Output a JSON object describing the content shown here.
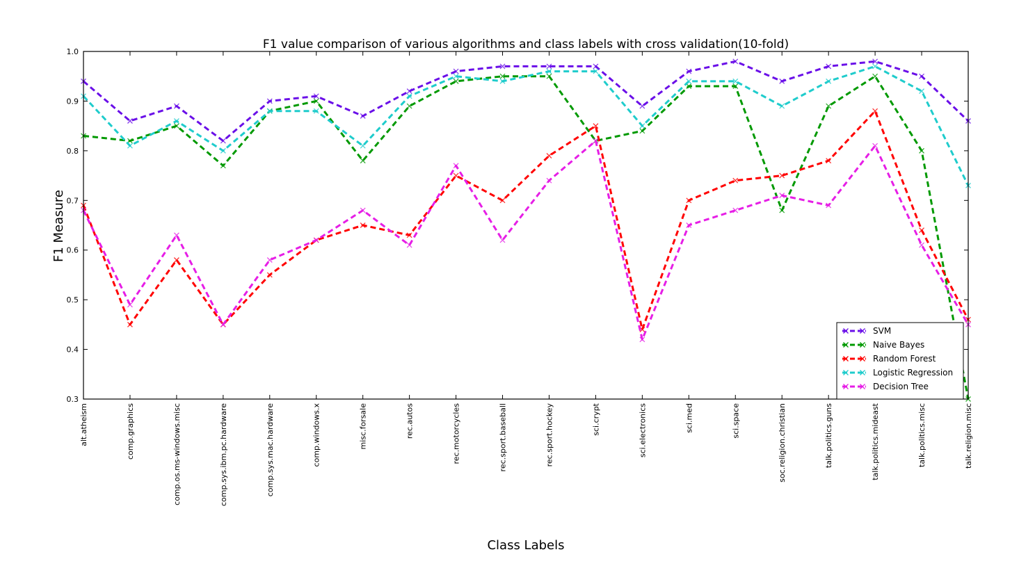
{
  "chart_data": {
    "type": "line",
    "title": "F1 value comparison of various algorithms and class labels with cross validation(10-fold)",
    "xlabel": "Class Labels",
    "ylabel": "F1 Measure",
    "ylim": [
      0.3,
      1.0
    ],
    "yticks": [
      "0.3",
      "0.4",
      "0.5",
      "0.6",
      "0.7",
      "0.8",
      "0.9",
      "1.0"
    ],
    "grid": false,
    "legend_position": "lower-right",
    "categories": [
      "alt.atheism",
      "comp.graphics",
      "comp.os.ms-windows.misc",
      "comp.sys.ibm.pc.hardware",
      "comp.sys.mac.hardware",
      "comp.windows.x",
      "misc.forsale",
      "rec.autos",
      "rec.motorcycles",
      "rec.sport.baseball",
      "rec.sport.hockey",
      "sci.crypt",
      "sci.electronics",
      "sci.med",
      "sci.space",
      "soc.religion.christian",
      "talk.politics.guns",
      "talk.politics.mideast",
      "talk.politics.misc",
      "talk.religion.misc"
    ],
    "series": [
      {
        "name": "SVM",
        "color": "#6a0fe8",
        "values": [
          0.94,
          0.86,
          0.89,
          0.82,
          0.9,
          0.91,
          0.87,
          0.92,
          0.96,
          0.97,
          0.97,
          0.97,
          0.89,
          0.96,
          0.98,
          0.94,
          0.97,
          0.98,
          0.95,
          0.86
        ]
      },
      {
        "name": "Naive Bayes",
        "color": "#009900",
        "values": [
          0.83,
          0.82,
          0.85,
          0.77,
          0.88,
          0.9,
          0.78,
          0.89,
          0.94,
          0.95,
          0.95,
          0.82,
          0.84,
          0.93,
          0.93,
          0.68,
          0.89,
          0.95,
          0.8,
          0.3
        ]
      },
      {
        "name": "Random Forest",
        "color": "#ff0000",
        "values": [
          0.69,
          0.45,
          0.58,
          0.45,
          0.55,
          0.62,
          0.65,
          0.63,
          0.75,
          0.7,
          0.79,
          0.85,
          0.44,
          0.7,
          0.74,
          0.75,
          0.78,
          0.88,
          0.64,
          0.46
        ]
      },
      {
        "name": "Logistic Regression",
        "color": "#1fcccc",
        "values": [
          0.91,
          0.81,
          0.86,
          0.8,
          0.88,
          0.88,
          0.81,
          0.91,
          0.95,
          0.94,
          0.96,
          0.96,
          0.85,
          0.94,
          0.94,
          0.89,
          0.94,
          0.97,
          0.92,
          0.73
        ]
      },
      {
        "name": "Decision Tree",
        "color": "#e61ee6",
        "values": [
          0.68,
          0.49,
          0.63,
          0.45,
          0.58,
          0.62,
          0.68,
          0.61,
          0.77,
          0.62,
          0.74,
          0.82,
          0.42,
          0.65,
          0.68,
          0.71,
          0.69,
          0.81,
          0.61,
          0.45
        ]
      }
    ]
  }
}
